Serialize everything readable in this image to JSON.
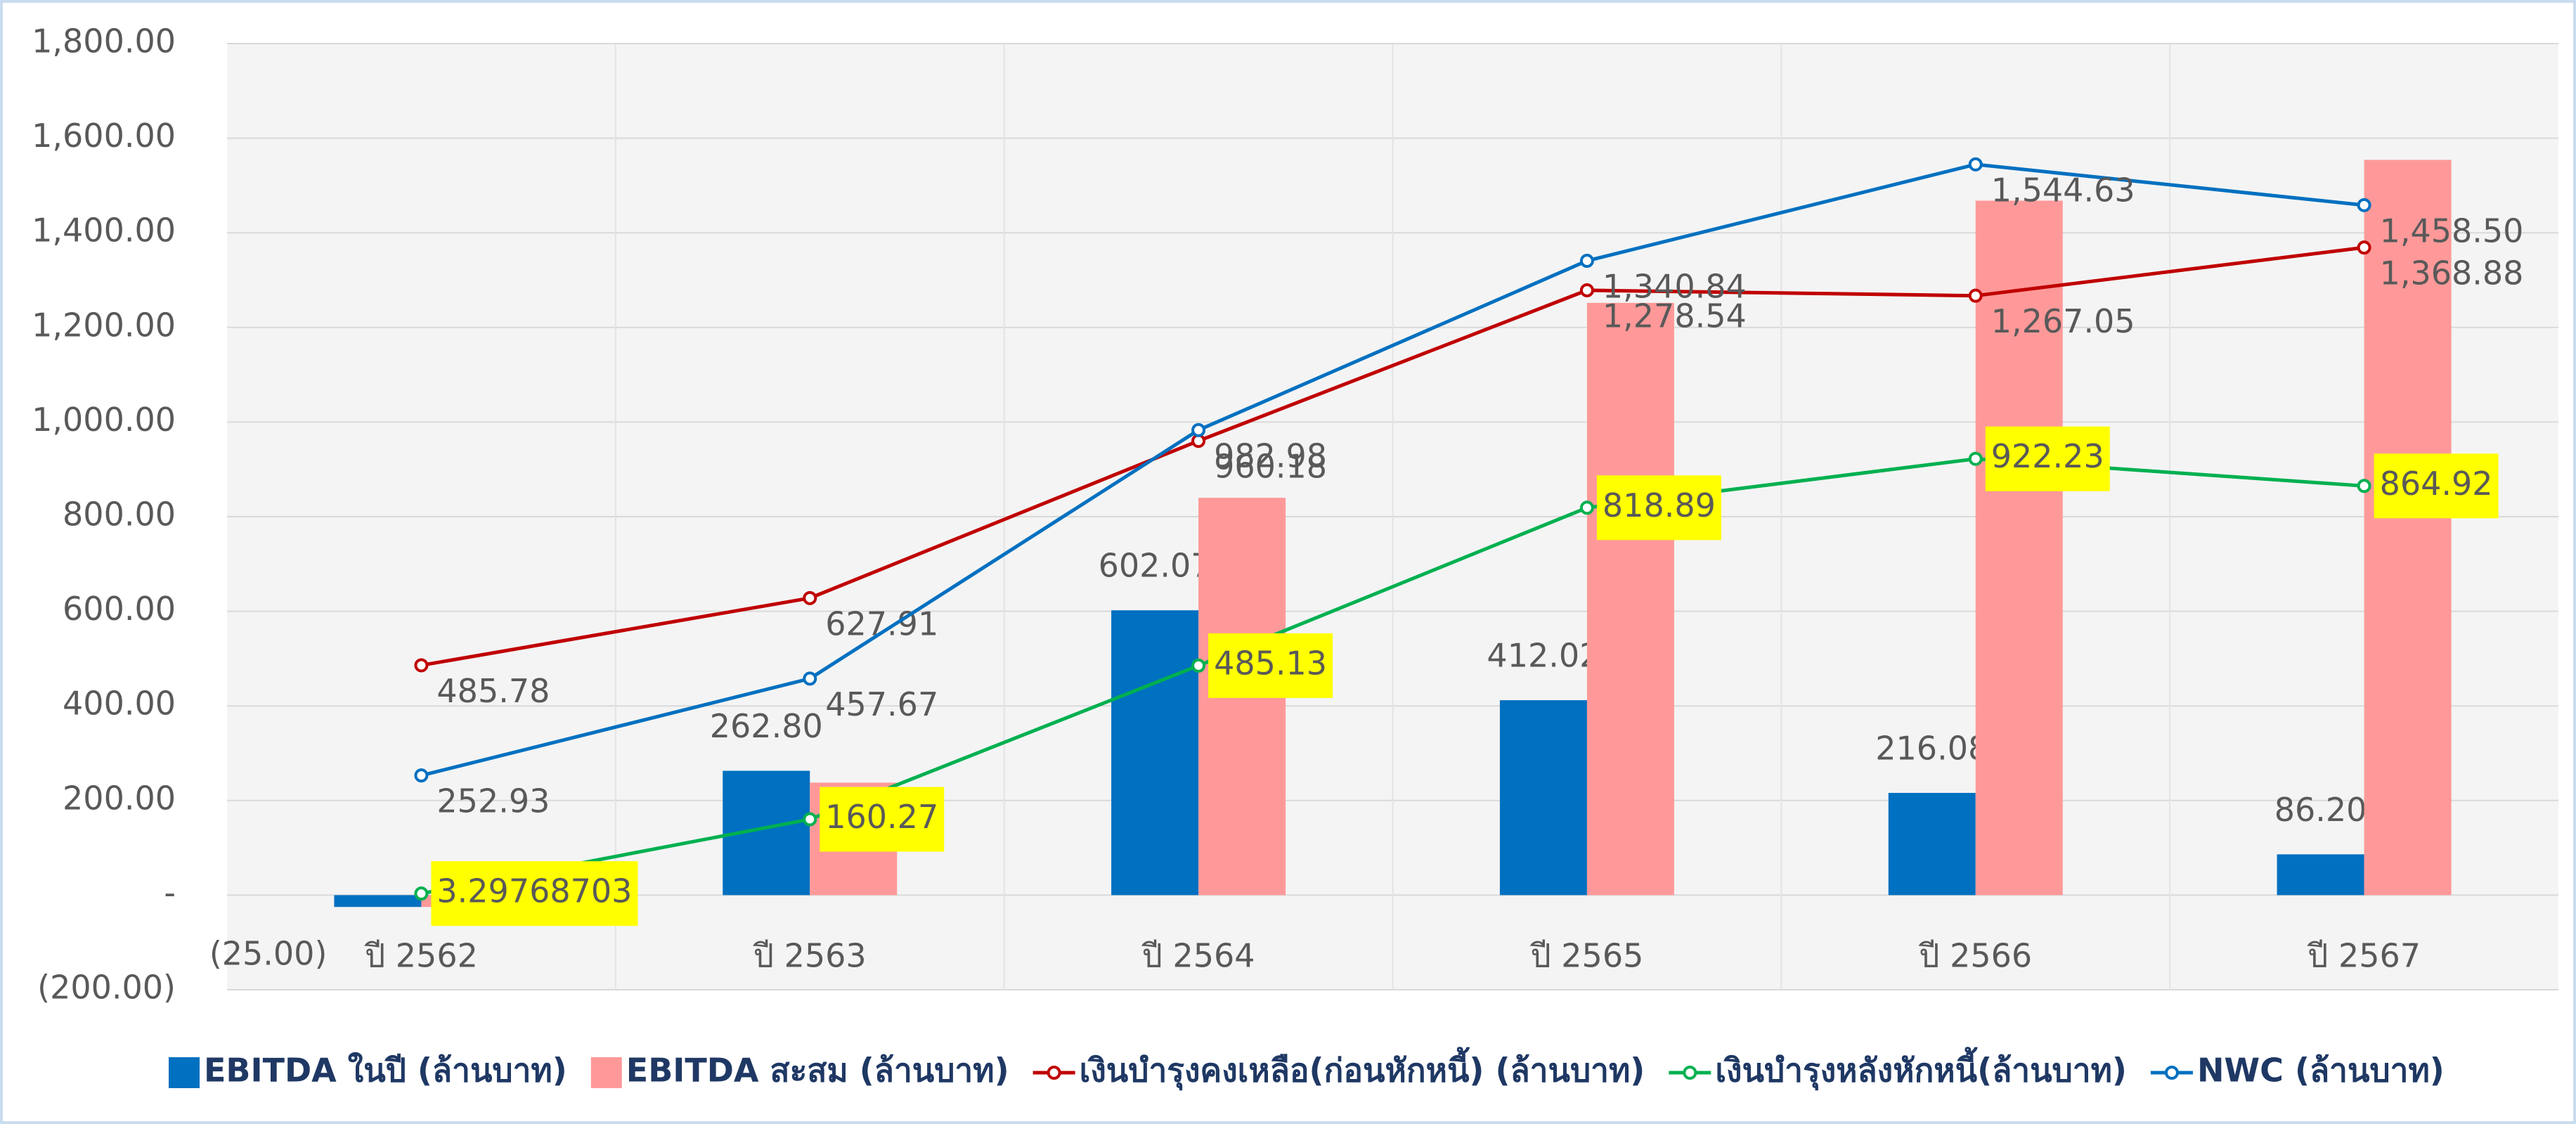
{
  "chart_data": {
    "type": "bar-line",
    "categories": [
      "ปี 2562",
      "ปี 2563",
      "ปี 2564",
      "ปี 2565",
      "ปี 2566",
      "ปี 2567"
    ],
    "series": [
      {
        "name": "EBITDA ในปี (ล้านบาท)",
        "kind": "bar",
        "color": "#0070c0",
        "values": [
          -25,
          262.8,
          602.07,
          412.02,
          216.08,
          86.2
        ],
        "value_labels": [
          "(25.00)",
          "262.80",
          "602.07",
          "412.02",
          "216.08",
          "86.20"
        ]
      },
      {
        "name": "EBITDA สะสม (ล้านบาท)",
        "kind": "bar",
        "color": "#ff9999",
        "values": [
          -25,
          237.8,
          839.87,
          1251.89,
          1467.97,
          1554.17
        ]
      },
      {
        "name": "เงินบำรุงคงเหลือ(ก่อนหักหนี้) (ล้านบาท)",
        "kind": "line",
        "color": "#c00000",
        "values": [
          485.78,
          627.91,
          960.18,
          1278.54,
          1267.05,
          1368.88
        ],
        "value_labels": [
          "485.78",
          "627.91",
          "960.18",
          "1,278.54",
          "1,267.05",
          "1,368.88"
        ]
      },
      {
        "name": "เงินบำรุงหลังหักหนี้(ล้านบาท)",
        "kind": "line",
        "color": "#00b050",
        "values": [
          3.29768703,
          160.27,
          485.13,
          818.89,
          922.23,
          864.92
        ],
        "value_labels": [
          "3.29768703",
          "160.27",
          "485.13",
          "818.89",
          "922.23",
          "864.92"
        ],
        "label_box": "#ffff00"
      },
      {
        "name": "NWC (ล้านบาท)",
        "kind": "line",
        "color": "#0070c0",
        "values": [
          252.93,
          457.67,
          982.98,
          1340.84,
          1544.63,
          1458.5
        ],
        "value_labels": [
          "252.93",
          "457.67",
          "982.98",
          "1,340.84",
          "1,544.63",
          "1,458.50"
        ]
      }
    ],
    "ylim": [
      -200,
      1800
    ],
    "yticks": [
      {
        "value": -200,
        "label": "(200.00)"
      },
      {
        "value": 0,
        "label": "-"
      },
      {
        "value": 200,
        "label": "200.00"
      },
      {
        "value": 400,
        "label": "400.00"
      },
      {
        "value": 600,
        "label": "600.00"
      },
      {
        "value": 800,
        "label": "800.00"
      },
      {
        "value": 1000,
        "label": "1,000.00"
      },
      {
        "value": 1200,
        "label": "1,200.00"
      },
      {
        "value": 1400,
        "label": "1,400.00"
      },
      {
        "value": 1600,
        "label": "1,600.00"
      },
      {
        "value": 1800,
        "label": "1,800.00"
      }
    ],
    "grid": true,
    "legend": "bottom"
  }
}
